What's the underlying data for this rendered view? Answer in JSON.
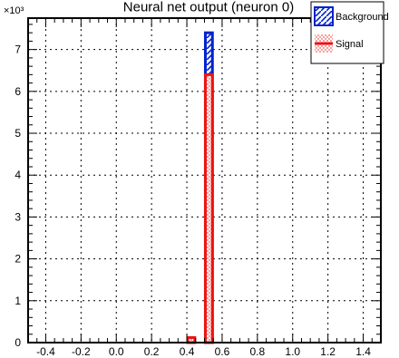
{
  "chart_data": {
    "type": "bar",
    "title": "Neural net output (neuron 0)",
    "xlabel": "",
    "ylabel": "",
    "y_exponent_label": "×10³",
    "xlim": [
      -0.5,
      1.5
    ],
    "ylim": [
      0,
      7.75
    ],
    "x_ticks": [
      "-0.4",
      "-0.2",
      "0.0",
      "0.2",
      "0.4",
      "0.6",
      "0.8",
      "1.0",
      "1.2",
      "1.4"
    ],
    "y_ticks": [
      "0",
      "1",
      "2",
      "3",
      "4",
      "5",
      "6",
      "7"
    ],
    "grid": true,
    "legend_position": "top-right",
    "bin_width": 0.05,
    "series": [
      {
        "name": "Background",
        "color": "#0022cc",
        "style": "hatched",
        "bins": [
          {
            "x": 0.525,
            "value": 7.4
          }
        ]
      },
      {
        "name": "Signal",
        "color": "#ee1111",
        "style": "dotted-fill",
        "bins": [
          {
            "x": 0.425,
            "value": 0.12
          },
          {
            "x": 0.525,
            "value": 6.4
          }
        ]
      }
    ]
  }
}
